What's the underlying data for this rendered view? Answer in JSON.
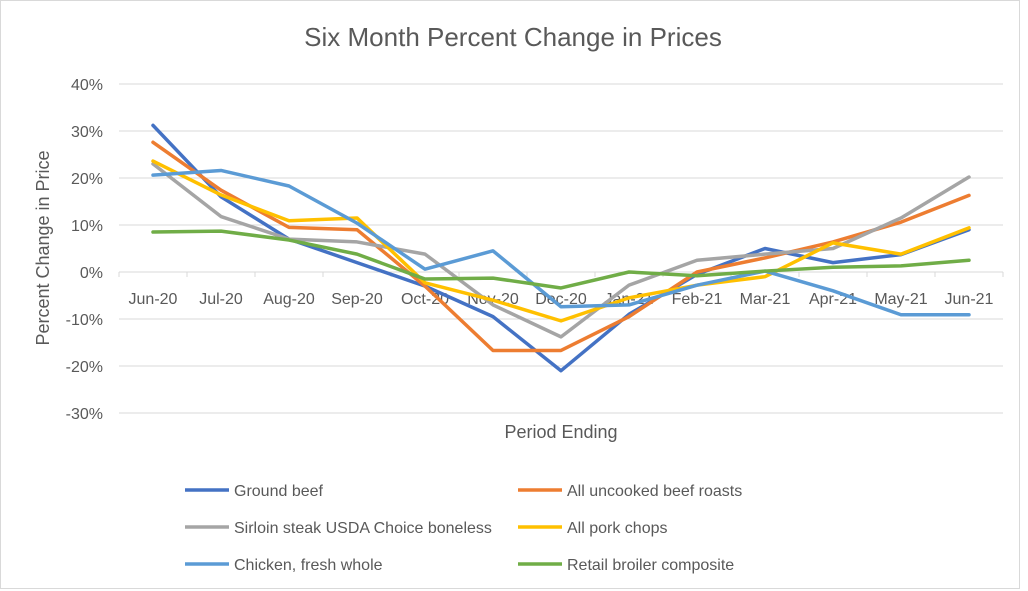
{
  "chart_data": {
    "type": "line",
    "title": "Six Month Percent Change in Prices",
    "xlabel": "Period Ending",
    "ylabel": "Percent Change in Price",
    "categories": [
      "Jun-20",
      "Jul-20",
      "Aug-20",
      "Sep-20",
      "Oct-20",
      "Nov-20",
      "Dec-20",
      "Jan-21",
      "Feb-21",
      "Mar-21",
      "Apr-21",
      "May-21",
      "Jun-21"
    ],
    "ylim": [
      -30,
      40
    ],
    "yticks": [
      "-30%",
      "-20%",
      "-10%",
      "0%",
      "10%",
      "20%",
      "30%",
      "40%"
    ],
    "grid": true,
    "legend_position": "bottom",
    "series": [
      {
        "name": "Ground beef",
        "color": "#4472c4",
        "values": [
          31.2,
          16,
          7,
          2,
          -3,
          -9.5,
          -21,
          -9,
          -0.5,
          5,
          2,
          3.7,
          9
        ]
      },
      {
        "name": "All uncooked beef roasts",
        "color": "#ed7d31",
        "values": [
          27.6,
          17.4,
          9.5,
          9,
          -3,
          -16.7,
          -16.7,
          -9.5,
          0,
          3,
          6.4,
          10.6,
          16.3
        ]
      },
      {
        "name": "Sirloin steak USDA Choice boneless",
        "color": "#a5a5a5",
        "values": [
          23,
          11.8,
          7,
          6.4,
          3.8,
          -7,
          -13.8,
          -2.8,
          2.5,
          3.8,
          5,
          11.5,
          20.2
        ]
      },
      {
        "name": "All pork chops",
        "color": "#ffc000",
        "values": [
          23.6,
          16.4,
          10.9,
          11.5,
          -2.3,
          -6,
          -10.4,
          -5.5,
          -2.8,
          -1,
          6.2,
          3.8,
          9.4
        ]
      },
      {
        "name": "Chicken, fresh whole",
        "color": "#5b9bd5",
        "values": [
          20.6,
          21.6,
          18.3,
          10.4,
          0.6,
          4.5,
          -7.4,
          -7,
          -2.8,
          0.2,
          -4,
          -9.1,
          -9.1
        ]
      },
      {
        "name": "Retail broiler composite",
        "color": "#70ad47",
        "values": [
          8.5,
          8.7,
          6.8,
          3.8,
          -1.5,
          -1.3,
          -3.4,
          0,
          -0.8,
          0.2,
          1,
          1.3,
          2.5
        ]
      }
    ]
  }
}
